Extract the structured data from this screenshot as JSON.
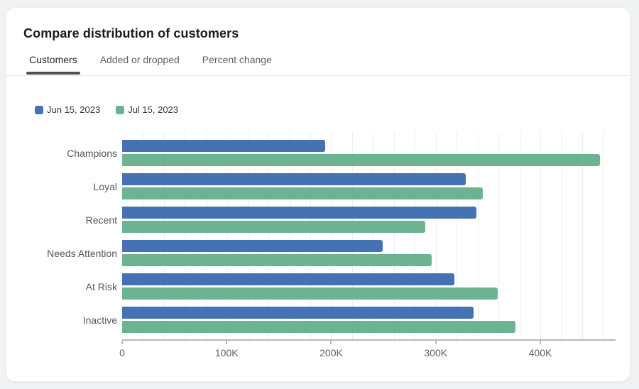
{
  "card": {
    "title": "Compare distribution of customers",
    "tabs": [
      {
        "label": "Customers",
        "active": true
      },
      {
        "label": "Added or dropped",
        "active": false
      },
      {
        "label": "Percent change",
        "active": false
      }
    ]
  },
  "legend": [
    {
      "label": "Jun 15, 2023",
      "color": "#4472b3"
    },
    {
      "label": "Jul 15, 2023",
      "color": "#6cb391"
    }
  ],
  "colors": {
    "series_blue": "#4472b3",
    "series_green": "#6cb391",
    "gridline": "#eceef2",
    "axis_line": "#b6b9bf",
    "tab_underline": "#4f5257",
    "page_background": "#f1f2f4",
    "card_background": "#ffffff"
  },
  "chart_data": {
    "type": "bar",
    "orientation": "horizontal",
    "title": "Compare distribution of customers",
    "categories": [
      "Champions",
      "Loyal",
      "Recent",
      "Needs Attention",
      "At Risk",
      "Inactive"
    ],
    "series": [
      {
        "name": "Jun 15, 2023",
        "color": "#4472b3",
        "values": [
          194000,
          329000,
          339000,
          249000,
          318000,
          336000
        ]
      },
      {
        "name": "Jul 15, 2023",
        "color": "#6cb391",
        "values": [
          457000,
          345000,
          290000,
          296000,
          359000,
          376000
        ]
      }
    ],
    "xlabel": "",
    "ylabel": "",
    "xlim": [
      0,
      472000
    ],
    "x_ticks": [
      {
        "value": 0,
        "label": "0"
      },
      {
        "value": 100000,
        "label": "100K"
      },
      {
        "value": 200000,
        "label": "200K"
      },
      {
        "value": 300000,
        "label": "300K"
      },
      {
        "value": 400000,
        "label": "400K"
      }
    ],
    "gridline_step": 20000,
    "grid": true,
    "legend_position": "top-left"
  }
}
